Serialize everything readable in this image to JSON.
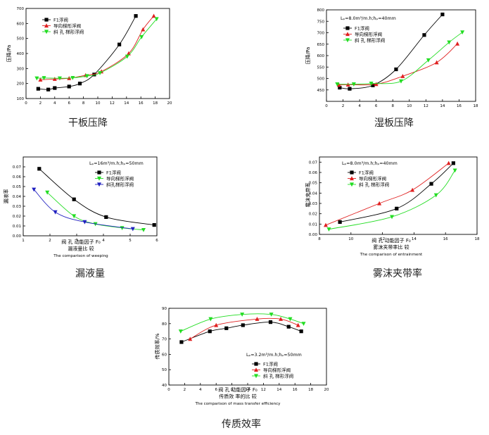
{
  "captions": [
    "干板压降",
    "湿板压降",
    "漏液量",
    "雾沫夹带率",
    "传质效率"
  ],
  "chart_data": [
    {
      "type": "line",
      "ylabel": "压降/Pa",
      "xlabel": "",
      "xlim": [
        0,
        20
      ],
      "ylim": [
        100,
        700
      ],
      "xticks": [
        0,
        2,
        4,
        6,
        8,
        10,
        12,
        14,
        16,
        18,
        20
      ],
      "yticks": [
        100,
        200,
        300,
        400,
        500,
        600,
        700
      ],
      "note": "",
      "caption_lines": [],
      "series": [
        {
          "name": "F1浮阀",
          "color": "#000000",
          "marker": "square",
          "x": [
            1.7,
            3.1,
            4,
            6,
            7.5,
            9.5,
            13,
            15.3
          ],
          "y": [
            165,
            160,
            170,
            180,
            200,
            260,
            460,
            650
          ]
        },
        {
          "name": "导向梯形浮阀",
          "color": "#e02020",
          "marker": "triangle-up",
          "x": [
            2,
            4,
            6,
            8.3,
            10.5,
            14.3,
            16.3,
            17.8
          ],
          "y": [
            225,
            230,
            235,
            255,
            280,
            400,
            560,
            650
          ]
        },
        {
          "name": "斜 孔 梯形浮阀",
          "color": "#22dd22",
          "marker": "triangle-down",
          "x": [
            1.5,
            2.5,
            4.7,
            6.5,
            8.5,
            10.3,
            14.1,
            16.1,
            18.2
          ],
          "y": [
            235,
            237,
            235,
            238,
            250,
            270,
            380,
            510,
            630
          ]
        }
      ]
    },
    {
      "type": "line",
      "ylabel": "压降/Pa",
      "xlabel": "",
      "xlim": [
        0,
        18
      ],
      "ylim": [
        400,
        800
      ],
      "xticks": [
        0,
        2,
        4,
        6,
        8,
        10,
        12,
        14,
        16,
        18
      ],
      "yticks": [
        450,
        500,
        550,
        600,
        650,
        700,
        750,
        800
      ],
      "note": "Lₚ=8.0m³/m.h;hₚ=40mm",
      "caption_lines": [],
      "series": [
        {
          "name": "F1浮阀",
          "color": "#000000",
          "marker": "square",
          "x": [
            1.6,
            2.8,
            5.6,
            8.4,
            11.8,
            14
          ],
          "y": [
            460,
            455,
            470,
            540,
            690,
            780
          ]
        },
        {
          "name": "导向梯形浮阀",
          "color": "#e02020",
          "marker": "triangle-up",
          "x": [
            1.5,
            2.6,
            6,
            9.2,
            13.3,
            15.8
          ],
          "y": [
            472,
            473,
            475,
            510,
            570,
            652
          ]
        },
        {
          "name": "斜 孔 梯形浮阀",
          "color": "#22dd22",
          "marker": "triangle-down",
          "x": [
            1.3,
            3.3,
            5.4,
            9,
            12.3,
            14.8,
            16.4
          ],
          "y": [
            475,
            475,
            478,
            488,
            580,
            658,
            702
          ]
        }
      ]
    },
    {
      "type": "line",
      "ylabel": "漏液率",
      "xlabel": "",
      "xlim": [
        1,
        6
      ],
      "ylim": [
        0,
        0.08
      ],
      "xticks": [
        1,
        2,
        3,
        4,
        5,
        6
      ],
      "yticks": [
        0.0,
        0.01,
        0.02,
        0.03,
        0.04,
        0.05,
        0.06,
        0.07
      ],
      "note": "Lₚ=16m³/m.h;hₚ=50mm",
      "caption_lines": [
        "阀  孔  动能因子  F₀",
        "漏液量比  较",
        "The comparison of weeping"
      ],
      "series": [
        {
          "name": "F1浮阀",
          "color": "#000000",
          "marker": "square",
          "x": [
            1.6,
            2.9,
            4.1,
            5.9
          ],
          "y": [
            0.068,
            0.037,
            0.019,
            0.011
          ]
        },
        {
          "name": "导向梯形浮阀",
          "color": "#22dd22",
          "marker": "triangle-down",
          "x": [
            1.9,
            2.9,
            3.7,
            4.7,
            5.5
          ],
          "y": [
            0.044,
            0.02,
            0.012,
            0.008,
            0.006
          ]
        },
        {
          "name": "斜孔梯形浮阀",
          "color": "#2020c0",
          "marker": "triangle-down",
          "x": [
            1.4,
            2.2,
            3.3,
            5.1
          ],
          "y": [
            0.047,
            0.024,
            0.014,
            0.007
          ]
        }
      ]
    },
    {
      "type": "line",
      "ylabel": "雾沫夹带率",
      "xlabel": "",
      "xlim": [
        8,
        18
      ],
      "ylim": [
        0,
        0.075
      ],
      "xticks": [
        8,
        10,
        12,
        14,
        16,
        18
      ],
      "yticks": [
        0.0,
        0.01,
        0.02,
        0.03,
        0.04,
        0.05,
        0.06,
        0.07
      ],
      "note": "Lₚ=8.0m³/m.h;hₚ=40mm",
      "caption_lines": [
        "阀  孔  动能因子  F₀",
        "雾沫夹带率比  较",
        "The comparison of entrainment"
      ],
      "series": [
        {
          "name": "F1浮阀",
          "color": "#000000",
          "marker": "square",
          "x": [
            9.3,
            12.9,
            15.1,
            16.5
          ],
          "y": [
            0.012,
            0.025,
            0.049,
            0.069
          ]
        },
        {
          "name": "导向梯形浮阀",
          "color": "#e02020",
          "marker": "triangle-up",
          "x": [
            8.4,
            11.8,
            13.9,
            16.2
          ],
          "y": [
            0.009,
            0.03,
            0.043,
            0.069
          ]
        },
        {
          "name": "斜 孔 梯形浮阀",
          "color": "#22dd22",
          "marker": "triangle-down",
          "x": [
            8.6,
            12.6,
            15.4,
            16.6
          ],
          "y": [
            0.005,
            0.017,
            0.038,
            0.062
          ]
        }
      ]
    },
    {
      "type": "line",
      "ylabel": "传质效率/%",
      "xlabel": "",
      "xlim": [
        0,
        20
      ],
      "ylim": [
        40,
        90
      ],
      "xticks": [
        0,
        2,
        4,
        6,
        8,
        10,
        12,
        14,
        16,
        18,
        20
      ],
      "yticks": [
        40,
        50,
        60,
        70,
        80,
        90
      ],
      "note": "Lₚ=3.2m³/m.h;hₚ=50mm",
      "caption_lines": [
        "阀  孔  动能因子  F₀",
        "传质效  率的比  较",
        "The comparison of mass transfer efficiency"
      ],
      "series": [
        {
          "name": "F1浮阀",
          "color": "#000000",
          "marker": "square",
          "x": [
            1.6,
            5.2,
            7.3,
            9.4,
            12.9,
            15.2,
            16.8
          ],
          "y": [
            68,
            75,
            77,
            79,
            81,
            78,
            75
          ]
        },
        {
          "name": "导向梯形浮阀",
          "color": "#e02020",
          "marker": "triangle-up",
          "x": [
            2.7,
            6,
            11.2,
            14.2,
            16.4
          ],
          "y": [
            70,
            79,
            83,
            83,
            79
          ]
        },
        {
          "name": "斜 孔 梯形浮阀",
          "color": "#22dd22",
          "marker": "triangle-down",
          "x": [
            1.5,
            5.3,
            9.3,
            13,
            15.4,
            17.1
          ],
          "y": [
            75,
            83,
            86,
            86,
            83,
            80
          ]
        }
      ]
    }
  ]
}
